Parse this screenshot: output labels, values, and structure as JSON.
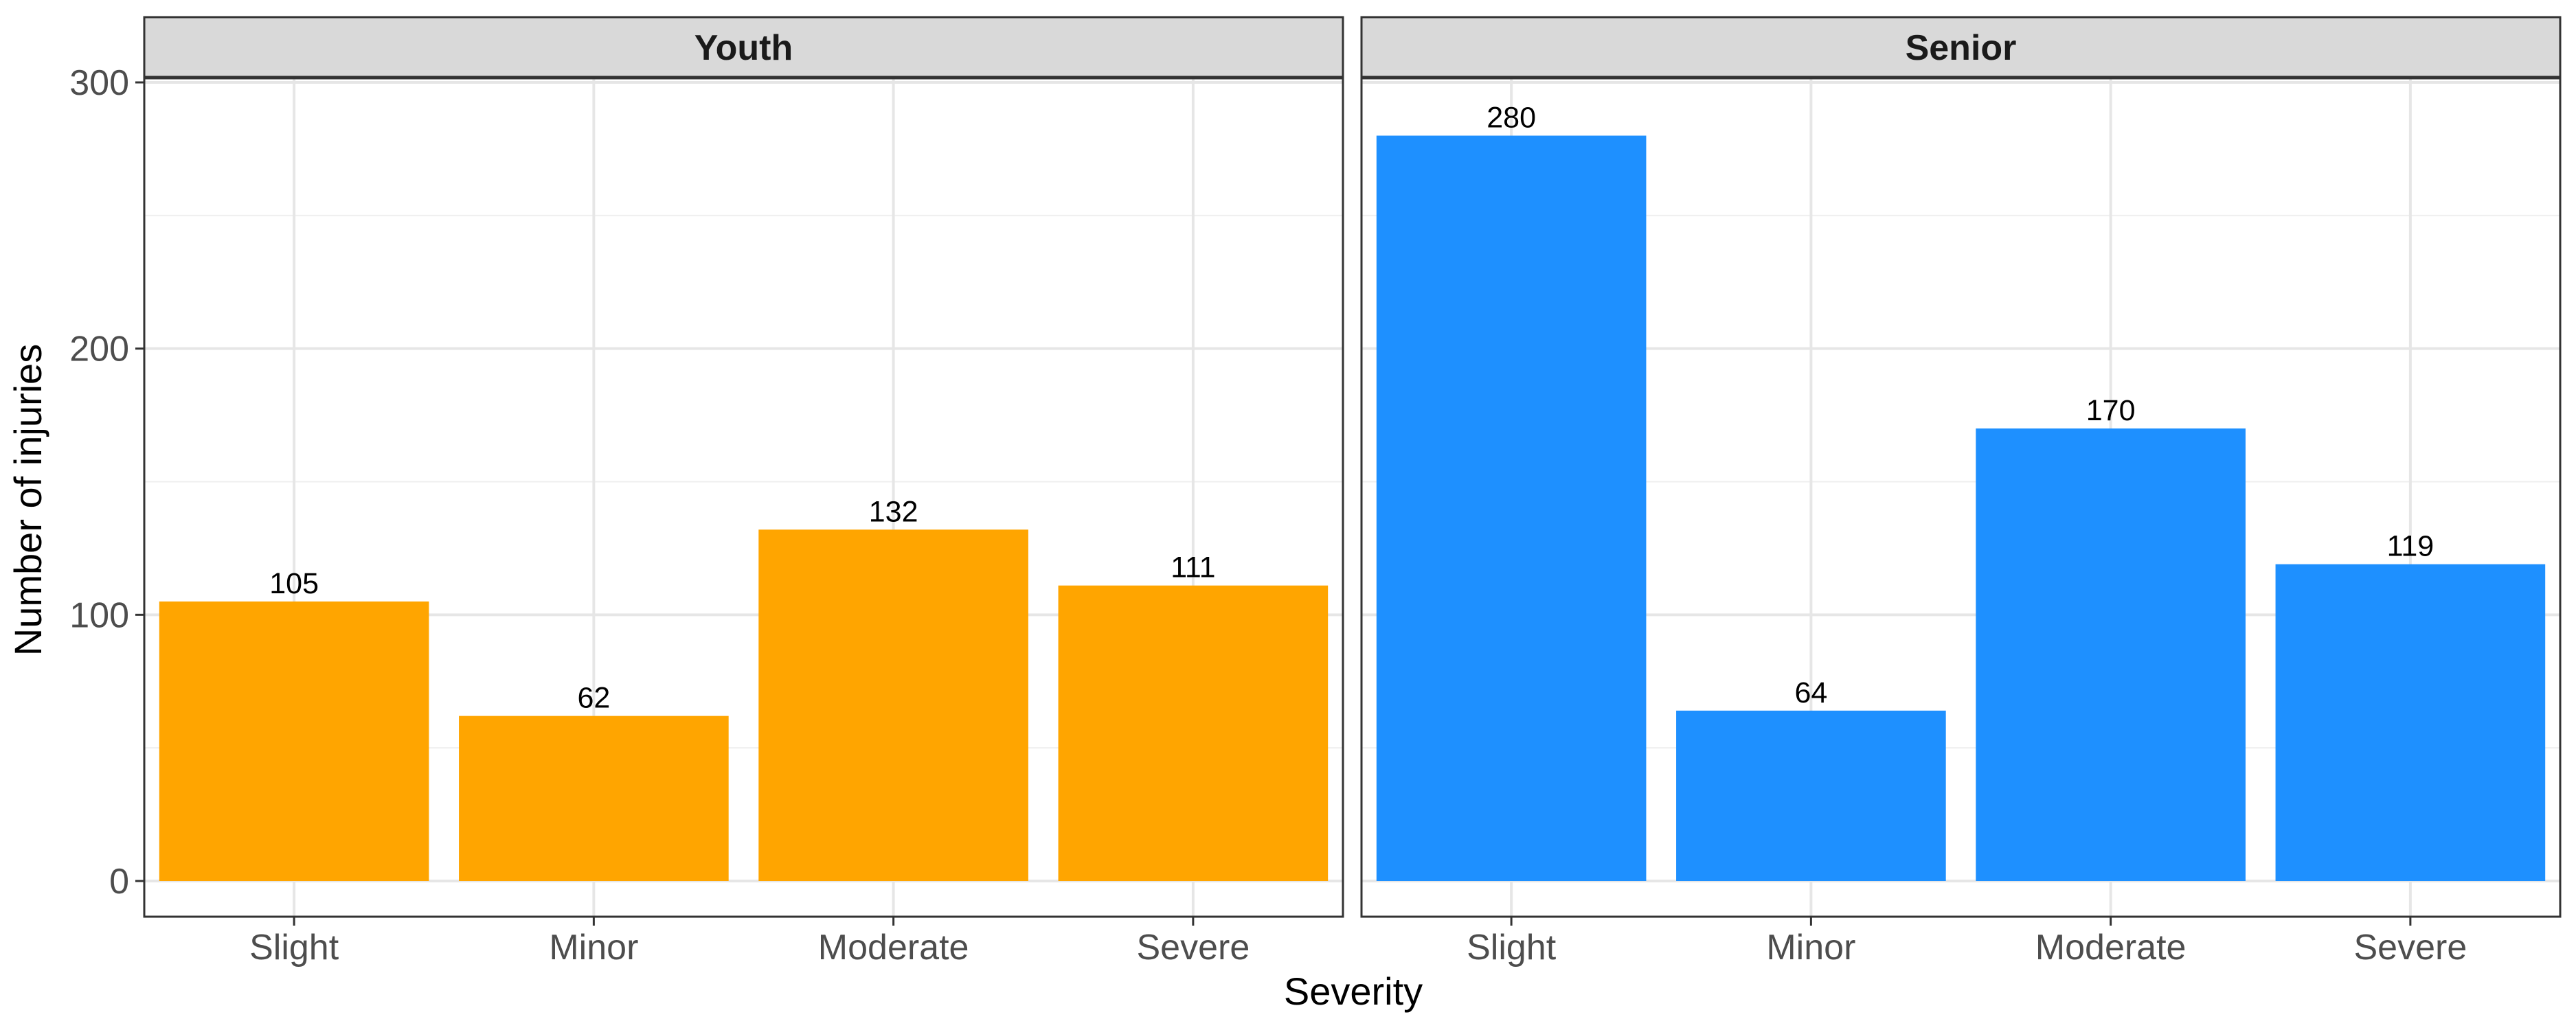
{
  "chart_data": {
    "type": "bar",
    "xlabel": "Severity",
    "ylabel": "Number of injuries",
    "ylim": [
      0,
      320
    ],
    "yticks": [
      0,
      100,
      200,
      300
    ],
    "grid": true,
    "categories": [
      "Slight",
      "Minor",
      "Moderate",
      "Severe"
    ],
    "panels": [
      {
        "name": "Youth",
        "color": "#FFA500",
        "values": [
          105,
          62,
          132,
          111
        ]
      },
      {
        "name": "Senior",
        "color": "#1E90FF",
        "values": [
          280,
          64,
          170,
          119
        ]
      }
    ]
  }
}
